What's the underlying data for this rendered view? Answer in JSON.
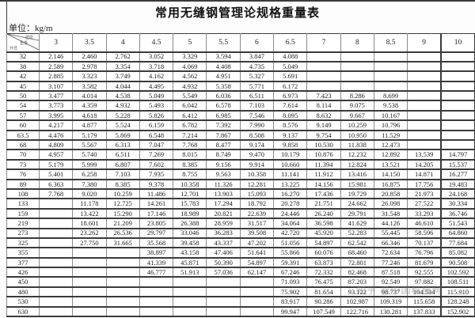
{
  "title": "常用无缝钢管理论规格重量表",
  "unit_label": "单位：kg/m",
  "corner": {
    "top": "壁厚",
    "mid": "重量",
    "bottom": "外径"
  },
  "watermark": {
    "text": "知乎 @中国机械网"
  },
  "colors": {
    "grid-dark": "#3a3a3a",
    "grid-mid": "#8a8a8a",
    "text": "#1c1c1c",
    "wm": "#8a8a8a"
  },
  "columns": [
    "3",
    "3.5",
    "4",
    "4.5",
    "5",
    "5.5",
    "6",
    "6.5",
    "7",
    "8",
    "8.5",
    "9",
    "10"
  ],
  "rows": [
    {
      "d": "32",
      "v": [
        "2.146",
        "2.460",
        "2.762",
        "3.052",
        "3.329",
        "3.594",
        "3.847",
        "4.088",
        "",
        "",
        "",
        "",
        ""
      ]
    },
    {
      "d": "38",
      "v": [
        "2.589",
        "2.978",
        "3.354",
        "3.718",
        "4.069",
        "4.408",
        "4.735",
        "5.049",
        "",
        "",
        "",
        "",
        ""
      ]
    },
    {
      "d": "42",
      "v": [
        "2.885",
        "3.323",
        "3.749",
        "4.162",
        "4.562",
        "4.951",
        "5.327",
        "5.691",
        "",
        "",
        "",
        "",
        ""
      ]
    },
    {
      "d": "45",
      "v": [
        "3.107",
        "3.582",
        "4.044",
        "4.495",
        "4.932",
        "5.358",
        "5.771",
        "6.172",
        "",
        "",
        "",
        "",
        ""
      ]
    },
    {
      "d": "50",
      "v": [
        "3.477",
        "4.014",
        "4.538",
        "5.049",
        "5.549",
        "6.036",
        "6.511",
        "6.973",
        "7.423",
        "8.286",
        "8.699",
        "",
        ""
      ]
    },
    {
      "d": "54",
      "v": [
        "3.773",
        "4.359",
        "4.932",
        "5.493",
        "6.042",
        "6.578",
        "7.103",
        "7.614",
        "8.114",
        "9.075",
        "9.538",
        "",
        ""
      ]
    },
    {
      "d": "57",
      "v": [
        "3.995",
        "4.618",
        "5.228",
        "5.826",
        "6.412",
        "6.985",
        "7.546",
        "8.095",
        "8.632",
        "9.667",
        "10.167",
        "",
        ""
      ]
    },
    {
      "d": "60",
      "v": [
        "4.217",
        "4.877",
        "5.524",
        "6.159",
        "6.782",
        "7.392",
        "7.990",
        "8.576",
        "9.149",
        "10.259",
        "10.796",
        "",
        ""
      ]
    },
    {
      "d": "63.5",
      "v": [
        "4.476",
        "5.179",
        "5.869",
        "6.548",
        "7.214",
        "7.867",
        "8.508",
        "9.137",
        "9.754",
        "10.950",
        "11.529",
        "",
        ""
      ]
    },
    {
      "d": "68",
      "v": [
        "4.809",
        "5.567",
        "6.313",
        "7.047",
        "7.768",
        "8.477",
        "9.174",
        "9.858",
        "10.530",
        "11.838",
        "12.473",
        "",
        ""
      ]
    },
    {
      "d": "70",
      "v": [
        "4.957",
        "5.740",
        "6.511",
        "7.269",
        "8.015",
        "8.749",
        "9.470",
        "10.179",
        "10.876",
        "12.232",
        "12.892",
        "13.539",
        "14.797"
      ]
    },
    {
      "d": "73",
      "v": [
        "5.179",
        "5.999",
        "6.807",
        "7.602",
        "8.385",
        "9.156",
        "9.914",
        "10.660",
        "11.394",
        "12.824",
        "13.521",
        "14.205",
        "15.537"
      ]
    },
    {
      "d": "76",
      "v": [
        "5.401",
        "6.258",
        "7.103",
        "7.935",
        "8.755",
        "9.563",
        "10.358",
        "11.141",
        "11.912",
        "13.416",
        "14.150",
        "14.871",
        "16.277"
      ]
    },
    {
      "d": "89",
      "v": [
        "6.363",
        "7.380",
        "8.385",
        "9.378",
        "10.358",
        "11.326",
        "12.281",
        "13.225",
        "14.156",
        "15.981",
        "16.875",
        "17.756",
        "19.483"
      ]
    },
    {
      "d": "108",
      "v": [
        "7.768",
        "9.020",
        "10.259",
        "11.486",
        "12.701",
        "13.903",
        "15.093",
        "16.270",
        "17.436",
        "19.729",
        "20.858",
        "21.973",
        "24.168"
      ]
    },
    {
      "d": "133",
      "v": [
        "",
        "11.178",
        "12.725",
        "14.261",
        "15.783",
        "17.294",
        "18.792",
        "20.278",
        "21.751",
        "24.662",
        "26.098",
        "27.522",
        "30.334"
      ]
    },
    {
      "d": "159",
      "v": [
        "",
        "13.422",
        "15.290",
        "17.146",
        "18.989",
        "20.821",
        "22.639",
        "24.446",
        "26.240",
        "29.791",
        "31.548",
        "33.293",
        "36.746"
      ]
    },
    {
      "d": "219",
      "v": [
        "",
        "18.601",
        "21.209",
        "23.805",
        "26.388",
        "28.959",
        "31.517",
        "34.064",
        "36.598",
        "41.629",
        "44.126",
        "46.610",
        "51.543"
      ]
    },
    {
      "d": "273",
      "v": [
        "",
        "23.262",
        "26.536",
        "29.797",
        "33.046",
        "36.283",
        "39.508",
        "42.720",
        "45.920",
        "52.283",
        "55.445",
        "58.596",
        "64.860"
      ]
    },
    {
      "d": "325",
      "v": [
        "",
        "27.750",
        "31.665",
        "35.568",
        "39.458",
        "43.337",
        "47.202",
        "51.056",
        "54.897",
        "62.542",
        "66.346",
        "70.137",
        "77.684"
      ]
    },
    {
      "d": "355",
      "v": [
        "",
        "",
        "",
        "38.897",
        "43.158",
        "47.406",
        "51.641",
        "55.866",
        "60.076",
        "68.460",
        "72.634",
        "76.796",
        "85.082"
      ]
    },
    {
      "d": "377",
      "v": [
        "",
        "",
        "",
        "41.339",
        "45.871",
        "50.390",
        "54.897",
        "59.391",
        "63.873",
        "72.801",
        "77.246",
        "81.679",
        "90.508"
      ]
    },
    {
      "d": "426",
      "v": [
        "",
        "",
        "",
        "46.777",
        "51.913",
        "57.036",
        "62.147",
        "67.246",
        "72.332",
        "82.468",
        "87.518",
        "92.555",
        "102.592"
      ]
    },
    {
      "d": "450",
      "v": [
        "",
        "",
        "",
        "",
        "",
        "",
        "",
        "71.093",
        "76.475",
        "87.203",
        "92.549",
        "97.882",
        "108.511"
      ]
    },
    {
      "d": "480",
      "v": [
        "",
        "",
        "",
        "",
        "",
        "",
        "",
        "75.902",
        "81.654",
        "93.122",
        "98.737",
        "104.534",
        "115.910"
      ]
    },
    {
      "d": "530",
      "v": [
        "",
        "",
        "",
        "",
        "",
        "",
        "",
        "83.917",
        "90.286",
        "102.987",
        "109.319",
        "115.658",
        "128.248"
      ]
    },
    {
      "d": "630",
      "v": [
        "",
        "",
        "",
        "",
        "",
        "",
        "",
        "99.947",
        "107.549",
        "122.716",
        "130.281",
        "137.833",
        "152.902"
      ]
    }
  ]
}
